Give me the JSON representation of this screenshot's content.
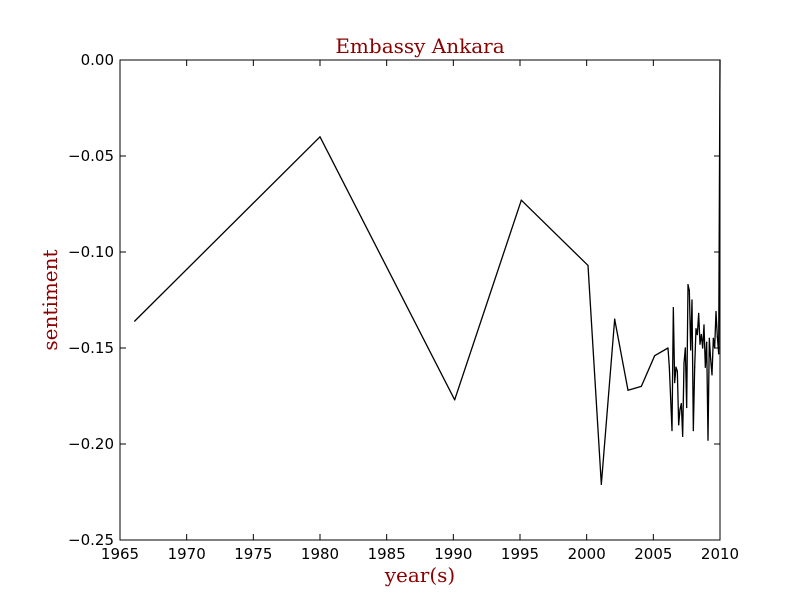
{
  "chart_data": {
    "type": "line",
    "title": "Embassy Ankara",
    "xlabel": "year(s)",
    "ylabel": "sentiment",
    "xlim": [
      1965,
      2010
    ],
    "ylim": [
      -0.25,
      0.0
    ],
    "grid": false,
    "legend": "none",
    "label_color": "#8b0000",
    "line_color": "#000000",
    "x_ticks": [
      1965,
      1970,
      1975,
      1980,
      1985,
      1990,
      1995,
      2000,
      2005,
      2010
    ],
    "x_tick_labels": [
      "1965",
      "1970",
      "1975",
      "1980",
      "1985",
      "1990",
      "1995",
      "2000",
      "2005",
      "2010"
    ],
    "y_ticks": [
      0.0,
      -0.05,
      -0.1,
      -0.15,
      -0.2,
      -0.25
    ],
    "y_tick_labels": [
      "0.00",
      "−0.05",
      "−0.10",
      "−0.15",
      "−0.20",
      "−0.25"
    ],
    "series": [
      {
        "x": [
          1966.1,
          1980.0,
          1990.1,
          1995.1,
          2000.1,
          2001.1,
          2002.1,
          2003.1,
          2004.1,
          2005.1,
          2006.1,
          2006.2,
          2006.4,
          2006.5,
          2006.6,
          2006.7,
          2006.8,
          2006.9,
          2007.0,
          2007.1,
          2007.2,
          2007.3,
          2007.4,
          2007.5,
          2007.6,
          2007.7,
          2007.8,
          2007.9,
          2008.0,
          2008.1,
          2008.2,
          2008.3,
          2008.4,
          2008.5,
          2008.6,
          2008.7,
          2008.8,
          2008.9,
          2009.0,
          2009.1,
          2009.2,
          2009.3,
          2009.4,
          2009.5,
          2009.6,
          2009.7,
          2009.8,
          2009.9,
          2010.0
        ],
        "y": [
          -0.136,
          -0.04,
          -0.177,
          -0.073,
          -0.107,
          -0.221,
          -0.135,
          -0.172,
          -0.17,
          -0.154,
          -0.15,
          -0.16,
          -0.193,
          -0.129,
          -0.168,
          -0.16,
          -0.162,
          -0.19,
          -0.182,
          -0.179,
          -0.196,
          -0.158,
          -0.15,
          -0.181,
          -0.117,
          -0.12,
          -0.151,
          -0.125,
          -0.193,
          -0.16,
          -0.14,
          -0.143,
          -0.132,
          -0.148,
          -0.143,
          -0.15,
          -0.138,
          -0.16,
          -0.147,
          -0.198,
          -0.145,
          -0.156,
          -0.164,
          -0.145,
          -0.15,
          -0.131,
          -0.144,
          -0.153,
          0.0
        ]
      }
    ]
  }
}
